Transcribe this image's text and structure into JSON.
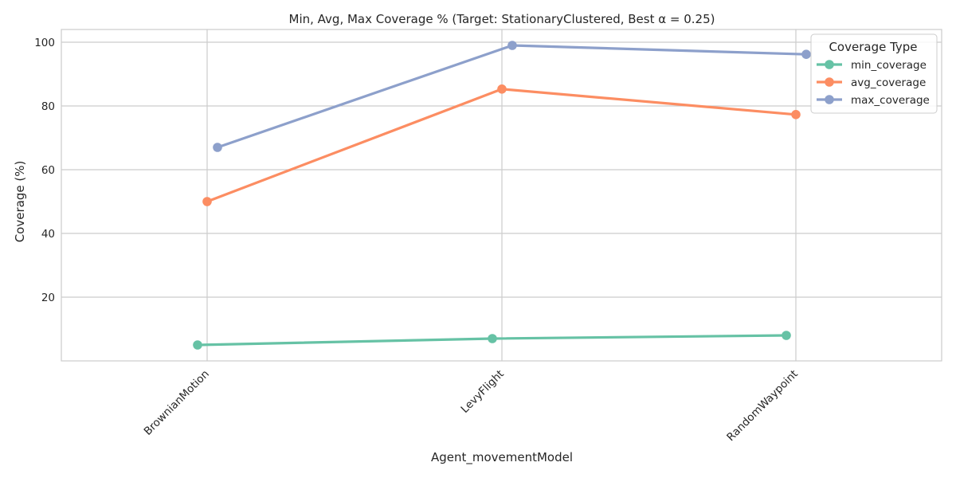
{
  "chart_data": {
    "type": "line",
    "title": "Min, Avg, Max Coverage % (Target: StationaryClustered, Best α = 0.25)",
    "xlabel": "Agent_movementModel",
    "ylabel": "Coverage (%)",
    "categories": [
      "BrownianMotion",
      "LevyFlight",
      "RandomWaypoint"
    ],
    "yticks": [
      20,
      40,
      60,
      80,
      100
    ],
    "ylim": [
      0,
      104
    ],
    "grid": true,
    "legend": {
      "title": "Coverage Type",
      "position": "top-right"
    },
    "series": [
      {
        "name": "min_coverage",
        "color": "#66c2a5",
        "values": [
          5.0,
          7.0,
          8.0
        ]
      },
      {
        "name": "avg_coverage",
        "color": "#fc8d62",
        "values": [
          50.0,
          85.3,
          77.3
        ]
      },
      {
        "name": "max_coverage",
        "color": "#8da0cb",
        "values": [
          67.0,
          99.0,
          96.2
        ]
      }
    ]
  }
}
